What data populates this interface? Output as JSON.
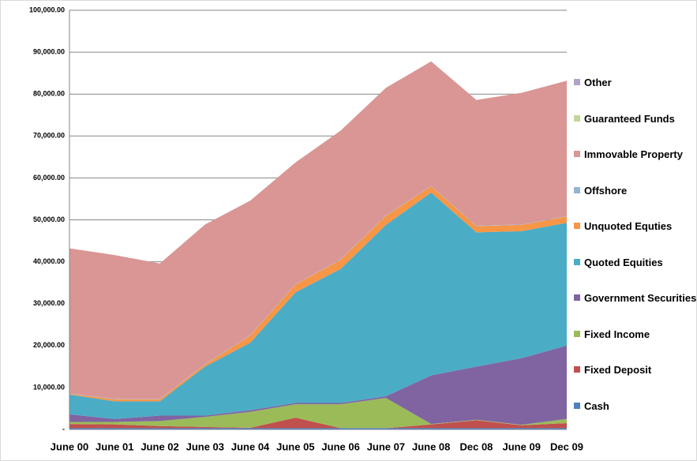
{
  "chart_data": {
    "type": "stacked-area",
    "categories": [
      "June 00",
      "June 01",
      "June 02",
      "June 03",
      "June 04",
      "June 05",
      "June 06",
      "June 07",
      "June 08",
      "Dec 08",
      "June 09",
      "Dec 09"
    ],
    "series": [
      {
        "name": "Cash",
        "color": "#4f81bd",
        "values": [
          300,
          300,
          300,
          300,
          300,
          300,
          300,
          300,
          300,
          300,
          300,
          300
        ]
      },
      {
        "name": "Fixed Deposit",
        "color": "#c0504d",
        "values": [
          1000,
          900,
          500,
          300,
          100,
          2500,
          0,
          0,
          900,
          1900,
          700,
          1200
        ]
      },
      {
        "name": "Fixed Income",
        "color": "#9bbb59",
        "values": [
          500,
          600,
          1200,
          2400,
          3800,
          3200,
          5700,
          7200,
          100,
          100,
          100,
          1000
        ]
      },
      {
        "name": "Government Securities",
        "color": "#8064a2",
        "values": [
          1800,
          700,
          1300,
          300,
          400,
          300,
          300,
          400,
          11600,
          12700,
          15900,
          17500
        ]
      },
      {
        "name": "Quoted Equities",
        "color": "#4bacc6",
        "values": [
          4700,
          4200,
          3400,
          11700,
          16100,
          26400,
          32000,
          40900,
          43600,
          32000,
          30300,
          29300
        ]
      },
      {
        "name": "Unquoted Equties",
        "color": "#f79646",
        "values": [
          200,
          500,
          500,
          500,
          1700,
          1900,
          2200,
          2200,
          1500,
          1500,
          1500,
          1500
        ]
      },
      {
        "name": "Offshore",
        "color": "#95b3d7",
        "values": [
          100,
          100,
          100,
          100,
          100,
          100,
          100,
          100,
          100,
          100,
          100,
          100
        ]
      },
      {
        "name": "Immovable Property",
        "color": "#d99694",
        "values": [
          34600,
          34300,
          32300,
          33300,
          32100,
          29000,
          30700,
          30400,
          29700,
          30000,
          31400,
          32300
        ]
      },
      {
        "name": "Guaranteed Funds",
        "color": "#c3d69b",
        "values": [
          0,
          0,
          0,
          0,
          0,
          0,
          0,
          0,
          0,
          0,
          0,
          0
        ]
      },
      {
        "name": "Other",
        "color": "#b3a2c7",
        "values": [
          0,
          0,
          0,
          0,
          0,
          0,
          0,
          0,
          0,
          0,
          0,
          0
        ]
      }
    ],
    "ylim": [
      0,
      100000
    ],
    "yticks": [
      {
        "value": 0,
        "label": "-"
      },
      {
        "value": 10000,
        "label": "10,000.00"
      },
      {
        "value": 20000,
        "label": "20,000.00"
      },
      {
        "value": 30000,
        "label": "30,000.00"
      },
      {
        "value": 40000,
        "label": "40,000.00"
      },
      {
        "value": 50000,
        "label": "50,000.00"
      },
      {
        "value": 60000,
        "label": "60,000.00"
      },
      {
        "value": 70000,
        "label": "70,000.00"
      },
      {
        "value": 80000,
        "label": "80,000.00"
      },
      {
        "value": 90000,
        "label": "90,000.00"
      },
      {
        "value": 100000,
        "label": "100,000.00"
      }
    ],
    "grid": true,
    "legend": "right"
  }
}
